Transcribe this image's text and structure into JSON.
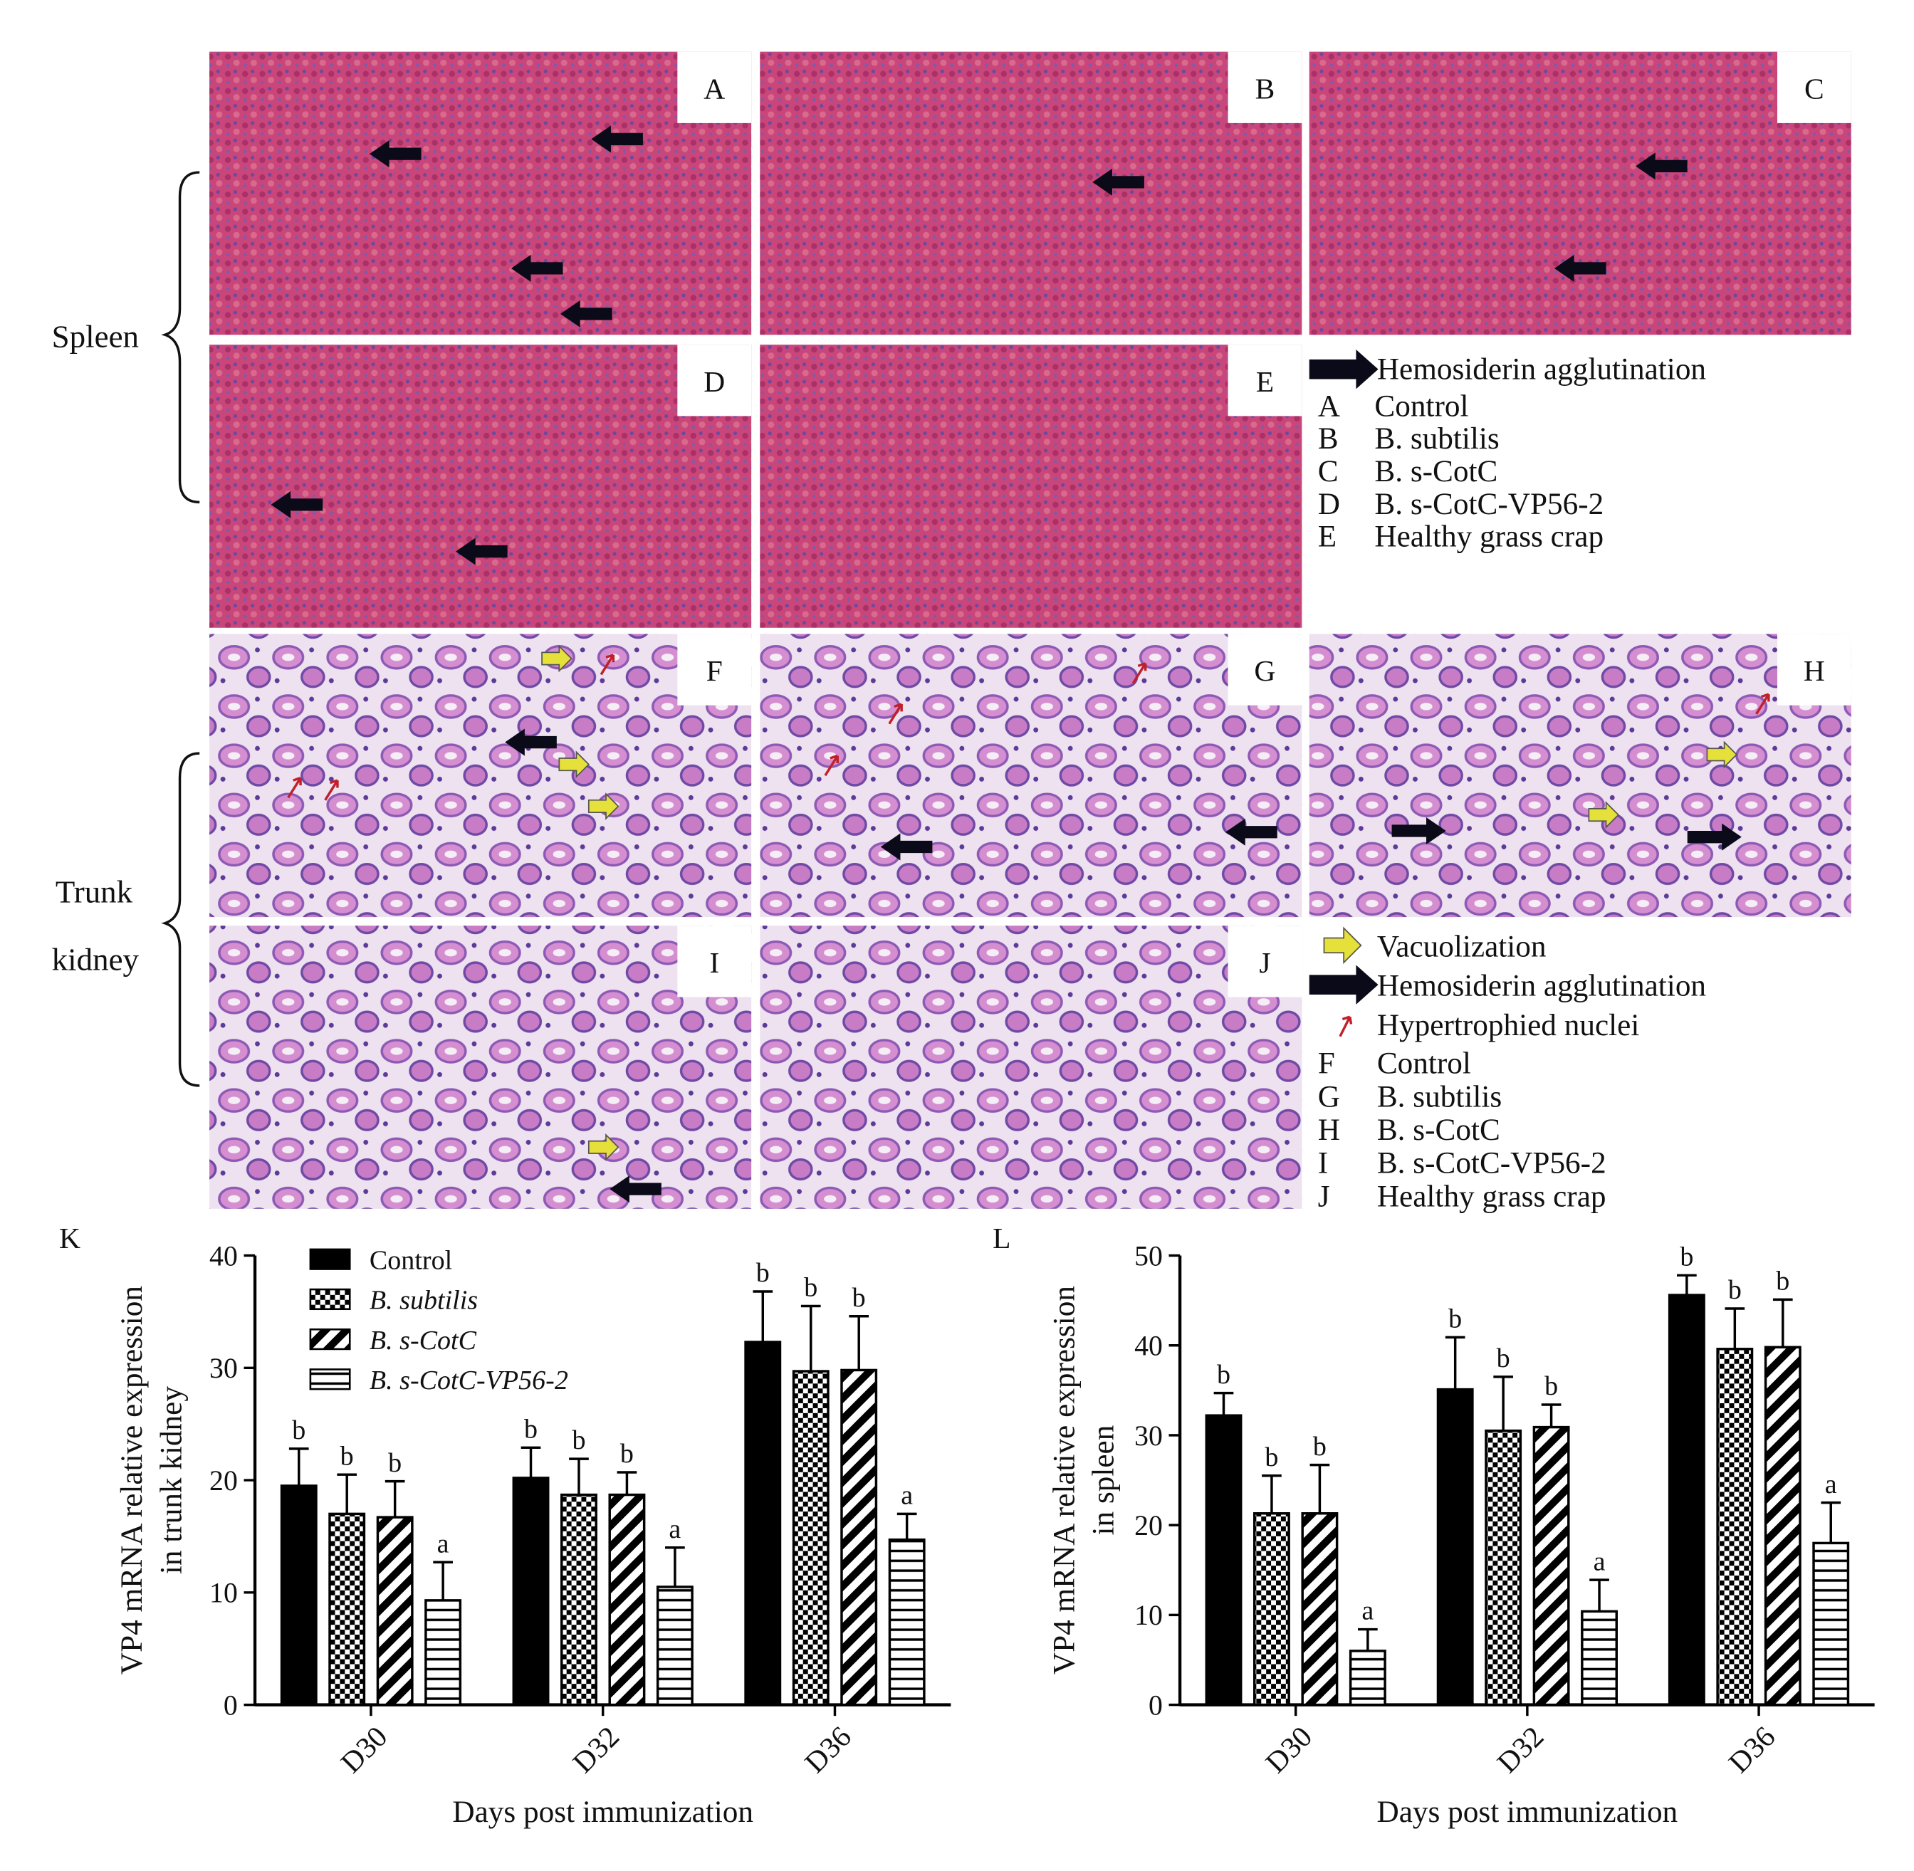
{
  "figure": {
    "panels": [
      "A",
      "B",
      "C",
      "D",
      "E",
      "F",
      "G",
      "H",
      "I",
      "J"
    ],
    "tissue_labels": [
      "Spleen",
      "Trunk",
      "kidney"
    ],
    "spleen_key": {
      "symbol": "Hemosiderin agglutination",
      "items": [
        [
          "A",
          "Control"
        ],
        [
          "B",
          "B. subtilis"
        ],
        [
          "C",
          "B. s-CotC"
        ],
        [
          "D",
          "B. s-CotC-VP56-2"
        ],
        [
          "E",
          "Healthy grass crap"
        ]
      ]
    },
    "kidney_key": {
      "symbols": [
        "Vacuolization",
        "Hemosiderin agglutination",
        "Hypertrophied nuclei"
      ],
      "items": [
        [
          "F",
          "Control"
        ],
        [
          "G",
          "B. subtilis"
        ],
        [
          "H",
          "B. s-CotC"
        ],
        [
          "I",
          "B. s-CotC-VP56-2"
        ],
        [
          "J",
          "Healthy grass crap"
        ]
      ]
    }
  },
  "chart_data": [
    {
      "type": "bar",
      "panel_label": "K",
      "y_label": [
        "VP4 mRNA relative expression",
        "in trunk kidney"
      ],
      "x_label": "Days post immunization",
      "categories": [
        "D30",
        "D32",
        "D36"
      ],
      "ylim": [
        0,
        40
      ],
      "yticks": [
        0,
        10,
        20,
        30,
        40
      ],
      "legend": "top-left",
      "series": [
        {
          "name": "Control",
          "pattern": "solid",
          "values": [
            19.5,
            20.2,
            32.3
          ],
          "errors": [
            3.3,
            2.7,
            4.5
          ],
          "letters": [
            "b",
            "b",
            "b"
          ]
        },
        {
          "name": "B. subtilis",
          "pattern": "checker",
          "values": [
            17.0,
            18.7,
            29.7
          ],
          "errors": [
            3.5,
            3.2,
            5.8
          ],
          "letters": [
            "b",
            "b",
            "b"
          ]
        },
        {
          "name": "B. s-CotC",
          "pattern": "diagonal",
          "values": [
            16.7,
            18.7,
            29.8
          ],
          "errors": [
            3.2,
            2.0,
            4.8
          ],
          "letters": [
            "b",
            "b",
            "b"
          ]
        },
        {
          "name": "B. s-CotC-VP56-2",
          "pattern": "horizontal",
          "values": [
            9.3,
            10.5,
            14.7
          ],
          "errors": [
            3.4,
            3.5,
            2.3
          ],
          "letters": [
            "a",
            "a",
            "a"
          ]
        }
      ]
    },
    {
      "type": "bar",
      "panel_label": "L",
      "y_label": [
        "VP4 mRNA relative expression",
        "in spleen"
      ],
      "x_label": "Days post immunization",
      "categories": [
        "D30",
        "D32",
        "D36"
      ],
      "ylim": [
        0,
        50
      ],
      "yticks": [
        0,
        10,
        20,
        30,
        40,
        50
      ],
      "series": [
        {
          "pattern": "solid",
          "values": [
            32.2,
            35.1,
            45.6
          ],
          "errors": [
            2.5,
            5.8,
            2.2
          ],
          "letters": [
            "b",
            "b",
            "b"
          ]
        },
        {
          "pattern": "checker",
          "values": [
            21.3,
            30.5,
            39.6
          ],
          "errors": [
            4.2,
            6.0,
            4.5
          ],
          "letters": [
            "b",
            "b",
            "b"
          ]
        },
        {
          "pattern": "diagonal",
          "values": [
            21.3,
            30.9,
            39.8
          ],
          "errors": [
            5.4,
            2.5,
            5.3
          ],
          "letters": [
            "b",
            "b",
            "b"
          ]
        },
        {
          "pattern": "horizontal",
          "values": [
            6.0,
            10.4,
            18.0
          ],
          "errors": [
            2.4,
            3.5,
            4.5
          ],
          "letters": [
            "a",
            "a",
            "a"
          ]
        }
      ]
    }
  ]
}
